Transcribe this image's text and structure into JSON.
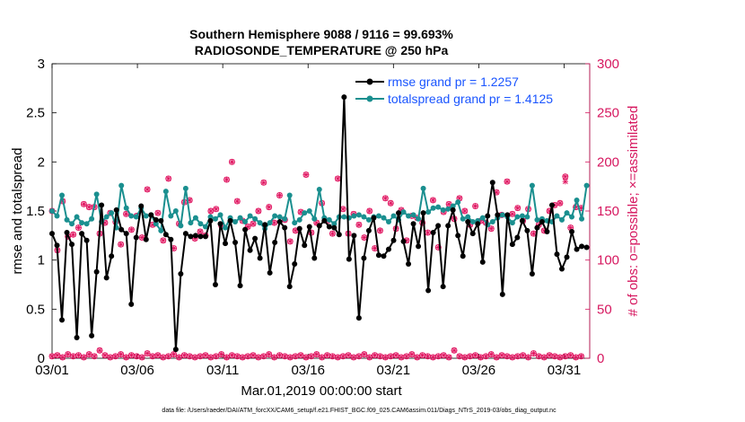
{
  "chart_data": {
    "type": "line",
    "title_line1": "Southern Hemisphere 9088 / 9116 = 99.693%",
    "title_line2": "RADIOSONDE_TEMPERATURE @ 250 hPa",
    "xlabel": "Mar.01,2019 00:00:00 start",
    "ylabel_left": "rmse and totalspread",
    "ylabel_right": "# of obs: o=possible; ×=assimilated",
    "xlim": [
      0,
      31.5
    ],
    "ylim_left": [
      0,
      3
    ],
    "ylim_right": [
      0,
      300
    ],
    "x_tick_positions": [
      0,
      5,
      10,
      15,
      20,
      25,
      30
    ],
    "x_tick_labels": [
      "03/01",
      "03/06",
      "03/11",
      "03/16",
      "03/21",
      "03/26",
      "03/31"
    ],
    "y_left_ticks": [
      "0",
      "0.5",
      "1",
      "1.5",
      "2",
      "2.5",
      "3"
    ],
    "y_right_ticks": [
      "0",
      "50",
      "100",
      "150",
      "200",
      "250",
      "300"
    ],
    "series": [
      {
        "name": "rmse grand pr = 1.2257",
        "color": "#000000",
        "values": [
          1.27,
          1.15,
          0.39,
          1.28,
          1.16,
          0.21,
          1.27,
          1.2,
          0.23,
          0.88,
          1.56,
          0.82,
          1.04,
          1.51,
          1.31,
          1.27,
          0.55,
          1.23,
          1.55,
          1.21,
          1.46,
          1.41,
          1.4,
          1.26,
          1.21,
          0.09,
          0.86,
          1.27,
          1.24,
          1.25,
          1.24,
          1.24,
          1.4,
          0.75,
          1.37,
          1.17,
          1.4,
          1.18,
          0.74,
          1.31,
          1.1,
          1.22,
          1.02,
          1.36,
          0.87,
          1.18,
          1.39,
          1.33,
          0.73,
          0.96,
          1.32,
          1.15,
          1.34,
          1.02,
          1.35,
          1.4,
          1.34,
          1.33,
          1.26,
          2.66,
          1.01,
          1.25,
          0.41,
          1.02,
          1.3,
          1.43,
          1.05,
          1.04,
          1.11,
          1.2,
          1.48,
          1.19,
          0.96,
          1.37,
          1.14,
          1.48,
          0.69,
          1.28,
          1.35,
          0.73,
          1.35,
          1.51,
          1.25,
          1.04,
          1.39,
          1.27,
          1.37,
          0.98,
          1.45,
          1.79,
          1.46,
          0.65,
          1.46,
          1.16,
          1.23,
          1.4,
          1.3,
          0.86,
          1.33,
          1.39,
          1.29,
          1.56,
          1.06,
          0.91,
          1.03,
          1.29,
          1.11,
          1.14,
          1.13
        ],
        "x_start": 0,
        "x_step": 0.29
      },
      {
        "name": "totalspread grand pr = 1.4125",
        "color": "#1a8f8f",
        "values": [
          1.5,
          1.45,
          1.66,
          1.41,
          1.37,
          1.44,
          1.38,
          1.37,
          1.42,
          1.67,
          1.39,
          1.44,
          1.48,
          1.33,
          1.76,
          1.53,
          1.45,
          1.44,
          1.53,
          1.45,
          1.46,
          1.37,
          1.3,
          1.7,
          1.45,
          1.5,
          1.35,
          1.73,
          1.38,
          1.43,
          1.37,
          1.34,
          1.44,
          1.42,
          1.46,
          1.33,
          1.43,
          1.39,
          1.43,
          1.39,
          1.45,
          1.42,
          1.38,
          1.32,
          1.38,
          1.45,
          1.44,
          1.42,
          1.66,
          1.38,
          1.41,
          1.48,
          1.5,
          1.42,
          1.72,
          1.43,
          1.41,
          1.37,
          1.44,
          1.44,
          1.43,
          1.45,
          1.46,
          1.44,
          1.41,
          1.44,
          1.45,
          1.43,
          1.39,
          1.45,
          1.41,
          1.49,
          1.45,
          1.46,
          1.42,
          1.73,
          1.49,
          1.53,
          1.54,
          1.51,
          1.52,
          1.55,
          1.59,
          1.42,
          1.44,
          1.39,
          1.4,
          1.43,
          1.36,
          1.39,
          1.43,
          1.46,
          1.44,
          1.38,
          1.44,
          1.45,
          1.44,
          1.76,
          1.41,
          1.42,
          1.4,
          1.39,
          1.45,
          1.41,
          1.48,
          1.44,
          1.61,
          1.42,
          1.76
        ],
        "x_start": 0,
        "x_step": 0.29
      }
    ],
    "obs_possible": [
      150,
      110,
      160,
      124,
      126,
      133,
      157,
      154,
      154,
      127,
      138,
      148,
      139,
      116,
      147,
      131,
      145,
      123,
      172,
      136,
      148,
      120,
      183,
      112,
      137,
      159,
      161,
      122,
      129,
      125,
      150,
      152,
      135,
      182,
      200,
      160,
      140,
      134,
      137,
      150,
      179,
      154,
      138,
      166,
      141,
      119,
      130,
      149,
      187,
      128,
      138,
      158,
      140,
      127,
      183,
      152,
      127,
      147,
      136,
      123,
      150,
      112,
      130,
      163,
      158,
      132,
      151,
      120,
      145,
      143,
      138,
      128,
      161,
      113,
      149,
      157,
      142,
      163,
      150,
      136,
      155,
      140,
      138,
      132,
      169,
      146,
      180,
      147,
      153,
      140,
      152,
      127,
      136,
      130,
      150,
      156,
      158,
      185,
      133,
      154,
      153
    ],
    "obs_assimilated": [
      150,
      110,
      160,
      124,
      126,
      133,
      157,
      154,
      154,
      127,
      138,
      148,
      139,
      116,
      147,
      131,
      145,
      123,
      172,
      136,
      148,
      120,
      183,
      112,
      137,
      159,
      161,
      122,
      129,
      125,
      150,
      152,
      135,
      182,
      200,
      160,
      140,
      134,
      137,
      150,
      179,
      154,
      138,
      166,
      141,
      119,
      130,
      149,
      187,
      128,
      138,
      158,
      140,
      127,
      183,
      152,
      127,
      147,
      136,
      123,
      150,
      112,
      130,
      163,
      158,
      132,
      151,
      120,
      145,
      143,
      138,
      128,
      161,
      113,
      149,
      157,
      142,
      163,
      150,
      136,
      155,
      140,
      138,
      132,
      169,
      146,
      180,
      147,
      153,
      140,
      152,
      127,
      136,
      130,
      150,
      156,
      158,
      180,
      133,
      154,
      153
    ],
    "obs_low_possible": [
      2,
      3,
      1,
      4,
      2,
      3,
      1,
      4,
      2,
      8,
      3,
      1,
      2,
      4,
      1,
      3,
      2,
      1,
      5,
      2,
      3,
      1,
      2,
      4,
      1,
      3,
      2,
      1,
      2,
      3,
      1,
      2,
      4,
      1,
      3,
      2,
      1,
      2,
      3,
      1,
      2,
      4,
      1,
      3,
      2,
      1,
      2,
      3,
      1,
      2,
      4,
      1,
      3,
      2,
      1,
      2,
      3,
      1,
      2,
      4,
      1,
      3,
      2,
      1,
      2,
      3,
      1,
      2,
      4,
      1,
      3,
      2,
      1,
      2,
      3,
      1,
      8,
      2,
      1,
      2,
      3,
      1,
      2,
      4,
      1,
      3,
      2,
      1,
      2,
      3,
      1,
      5,
      2,
      1,
      3,
      2,
      1,
      2,
      3,
      1,
      2
    ],
    "obs_x_start": 0,
    "obs_x_step": 0.31,
    "footer": "data file: /Users/raeder/DAI/ATM_forcXX/CAM6_setup/f.e21.FHIST_BGC.f09_025.CAM6assim.011/Diags_NTrS_2019-03/obs_diag_output.nc",
    "colors": {
      "rmse": "#000000",
      "spread": "#1a8f8f",
      "obs": "#e0135f",
      "legend_text": "#1a55ff",
      "right_axis": "#d6175f"
    }
  }
}
